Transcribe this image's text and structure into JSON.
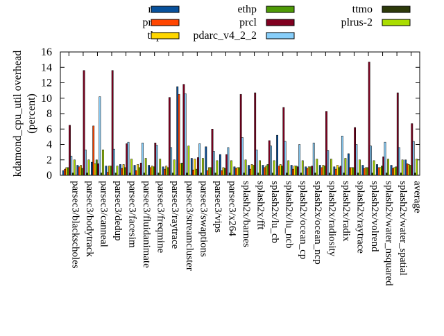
{
  "chart_data": {
    "type": "bar",
    "ylabel": "kdamond_cpu_util overhead\n(percent)",
    "ylim": [
      0,
      16
    ],
    "yticks": [
      0,
      2,
      4,
      6,
      8,
      10,
      12,
      14,
      16
    ],
    "legend_position": "top",
    "grid": false,
    "categories": [
      "parsec3/blackscholes",
      "parsec3/bodytrack",
      "parsec3/canneal",
      "parsec3/dedup",
      "parsec3/facesim",
      "parsec3/fluidanimate",
      "parsec3/freqmine",
      "parsec3/raytrace",
      "parsec3/streamcluster",
      "parsec3/swaptions",
      "parsec3/vips",
      "parsec3/x264",
      "splash2x/barnes",
      "splash2x/fft",
      "splash2x/lu_cb",
      "splash2x/lu_ncb",
      "splash2x/ocean_cp",
      "splash2x/ocean_ncp",
      "splash2x/radiosity",
      "splash2x/radix",
      "splash2x/raytrace",
      "splash2x/volrend",
      "splash2x/water_nsquared",
      "splash2x/water_spatial",
      "average"
    ],
    "series": [
      {
        "name": "rec",
        "color": "#08519c",
        "values": [
          0.6,
          1.3,
          1.7,
          1.2,
          1.4,
          1.3,
          1.3,
          1.1,
          11.5,
          2.2,
          3.7,
          2.7,
          1.1,
          1.3,
          1.3,
          5.2,
          1.3,
          1.1,
          1.3,
          1.1,
          2.8,
          1.3,
          1.4,
          1.3,
          2.0
        ]
      },
      {
        "name": "prec",
        "color": "#ff4500",
        "values": [
          0.8,
          1.1,
          6.4,
          0.4,
          0.9,
          0.6,
          1.0,
          0.8,
          10.5,
          0.7,
          0.6,
          0.6,
          0.9,
          0.8,
          1.0,
          1.2,
          0.8,
          0.9,
          1.0,
          0.8,
          1.0,
          0.9,
          1.0,
          0.9,
          1.5
        ]
      },
      {
        "name": "thp",
        "color": "#ffd700",
        "values": [
          1.0,
          1.3,
          1.5,
          1.2,
          1.4,
          1.4,
          1.2,
          1.2,
          1.5,
          2.1,
          1.0,
          1.0,
          1.0,
          1.4,
          1.2,
          1.4,
          1.2,
          1.1,
          1.3,
          1.3,
          1.0,
          1.0,
          1.0,
          1.0,
          1.4
        ]
      },
      {
        "name": "ethp",
        "color": "#4e9a06",
        "values": [
          1.0,
          0.9,
          2.0,
          1.2,
          1.0,
          1.0,
          1.1,
          1.0,
          1.6,
          0.8,
          1.0,
          0.9,
          1.0,
          1.3,
          1.4,
          1.2,
          1.2,
          1.1,
          1.2,
          1.0,
          1.0,
          1.0,
          1.2,
          1.1,
          1.3
        ]
      },
      {
        "name": "prcl",
        "color": "#800020",
        "values": [
          6.5,
          13.6,
          1.5,
          13.6,
          4.1,
          1.6,
          4.2,
          10.1,
          11.8,
          2.3,
          6.0,
          2.7,
          10.5,
          10.7,
          4.5,
          8.8,
          1.1,
          1.2,
          8.3,
          1.2,
          6.2,
          14.7,
          2.4,
          10.7,
          6.7
        ]
      },
      {
        "name": "pdarc_v4_2_2",
        "color": "#87cefa",
        "values": [
          2.5,
          3.3,
          10.2,
          3.4,
          4.3,
          4.2,
          3.9,
          3.6,
          10.6,
          4.1,
          3.1,
          3.6,
          4.9,
          3.3,
          3.8,
          4.4,
          4.0,
          4.2,
          3.2,
          5.1,
          4.0,
          3.8,
          4.3,
          3.6,
          4.4
        ]
      },
      {
        "name": "ttmo",
        "color": "#2d3a0a",
        "values": [
          0.3,
          0.3,
          0.3,
          0.3,
          0.3,
          0.3,
          0.3,
          0.3,
          0.3,
          0.3,
          0.3,
          0.3,
          0.3,
          0.3,
          0.3,
          0.3,
          0.3,
          0.3,
          0.3,
          0.3,
          0.3,
          0.3,
          0.3,
          0.3,
          0.3
        ]
      },
      {
        "name": "plrus-2",
        "color": "#aadd00",
        "values": [
          2.0,
          2.0,
          3.3,
          1.2,
          2.1,
          2.2,
          2.1,
          2.0,
          3.8,
          2.2,
          1.9,
          1.9,
          2.0,
          1.9,
          1.9,
          1.9,
          1.9,
          2.1,
          2.1,
          2.2,
          2.0,
          1.9,
          2.1,
          2.0,
          2.1
        ]
      }
    ]
  }
}
